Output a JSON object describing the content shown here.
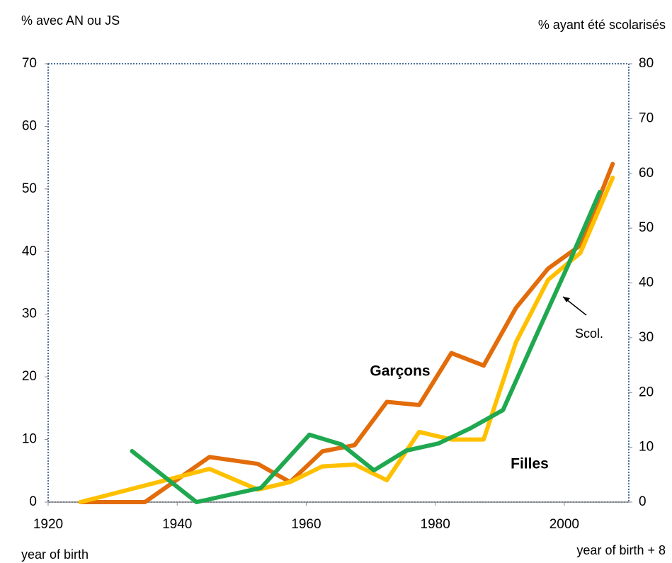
{
  "chart_data": {
    "type": "line",
    "y_label": "% avec AN ou JS",
    "y2_label": "% ayant été scolarisés",
    "x_label": "year of birth",
    "x2_label": "year of birth + 8",
    "xlim": [
      1920,
      2010
    ],
    "xticks": [
      1920,
      1940,
      1960,
      1980,
      2000
    ],
    "ylim": [
      0,
      70
    ],
    "yticks": [
      0,
      10,
      20,
      30,
      40,
      50,
      60,
      70
    ],
    "y2lim": [
      0,
      80
    ],
    "y2ticks": [
      0,
      10,
      20,
      30,
      40,
      50,
      60,
      70,
      80
    ],
    "series": [
      {
        "name": "Garçons",
        "color": "#e36c0a",
        "x": [
          1925,
          1935,
          1945,
          1952.5,
          1957.5,
          1962.5,
          1967.5,
          1972.5,
          1977.5,
          1982.5,
          1987.5,
          1992.5,
          1997.5,
          2002.5,
          2007.5
        ],
        "values": [
          0,
          0,
          7.2,
          6.1,
          3.2,
          8.1,
          9.1,
          16,
          15.5,
          23.8,
          21.8,
          31,
          37.3,
          41,
          54
        ]
      },
      {
        "name": "Filles",
        "color": "#ffc000",
        "x": [
          1925,
          1945,
          1952.5,
          1957.5,
          1962.5,
          1967.5,
          1972.5,
          1977.5,
          1982.5,
          1987.5,
          1992.5,
          1997.5,
          2002.5,
          2007.5
        ],
        "values": [
          0,
          5.3,
          2,
          3.2,
          5.7,
          6,
          3.5,
          11.2,
          10,
          10,
          25.5,
          35.5,
          39.8,
          51.8
        ]
      },
      {
        "name": "Scol.",
        "color": "#1fa84f",
        "axis": "y2",
        "x": [
          1933,
          1943,
          1953,
          1960.5,
          1965.5,
          1970.5,
          1975.5,
          1980.5,
          1985.5,
          1990.5,
          1995.5,
          2000.5,
          2005.5
        ],
        "values": [
          9.3,
          0,
          2.6,
          12.3,
          10.5,
          5.8,
          9.4,
          10.7,
          13.5,
          16.8,
          30,
          43,
          56.6
        ]
      }
    ]
  }
}
